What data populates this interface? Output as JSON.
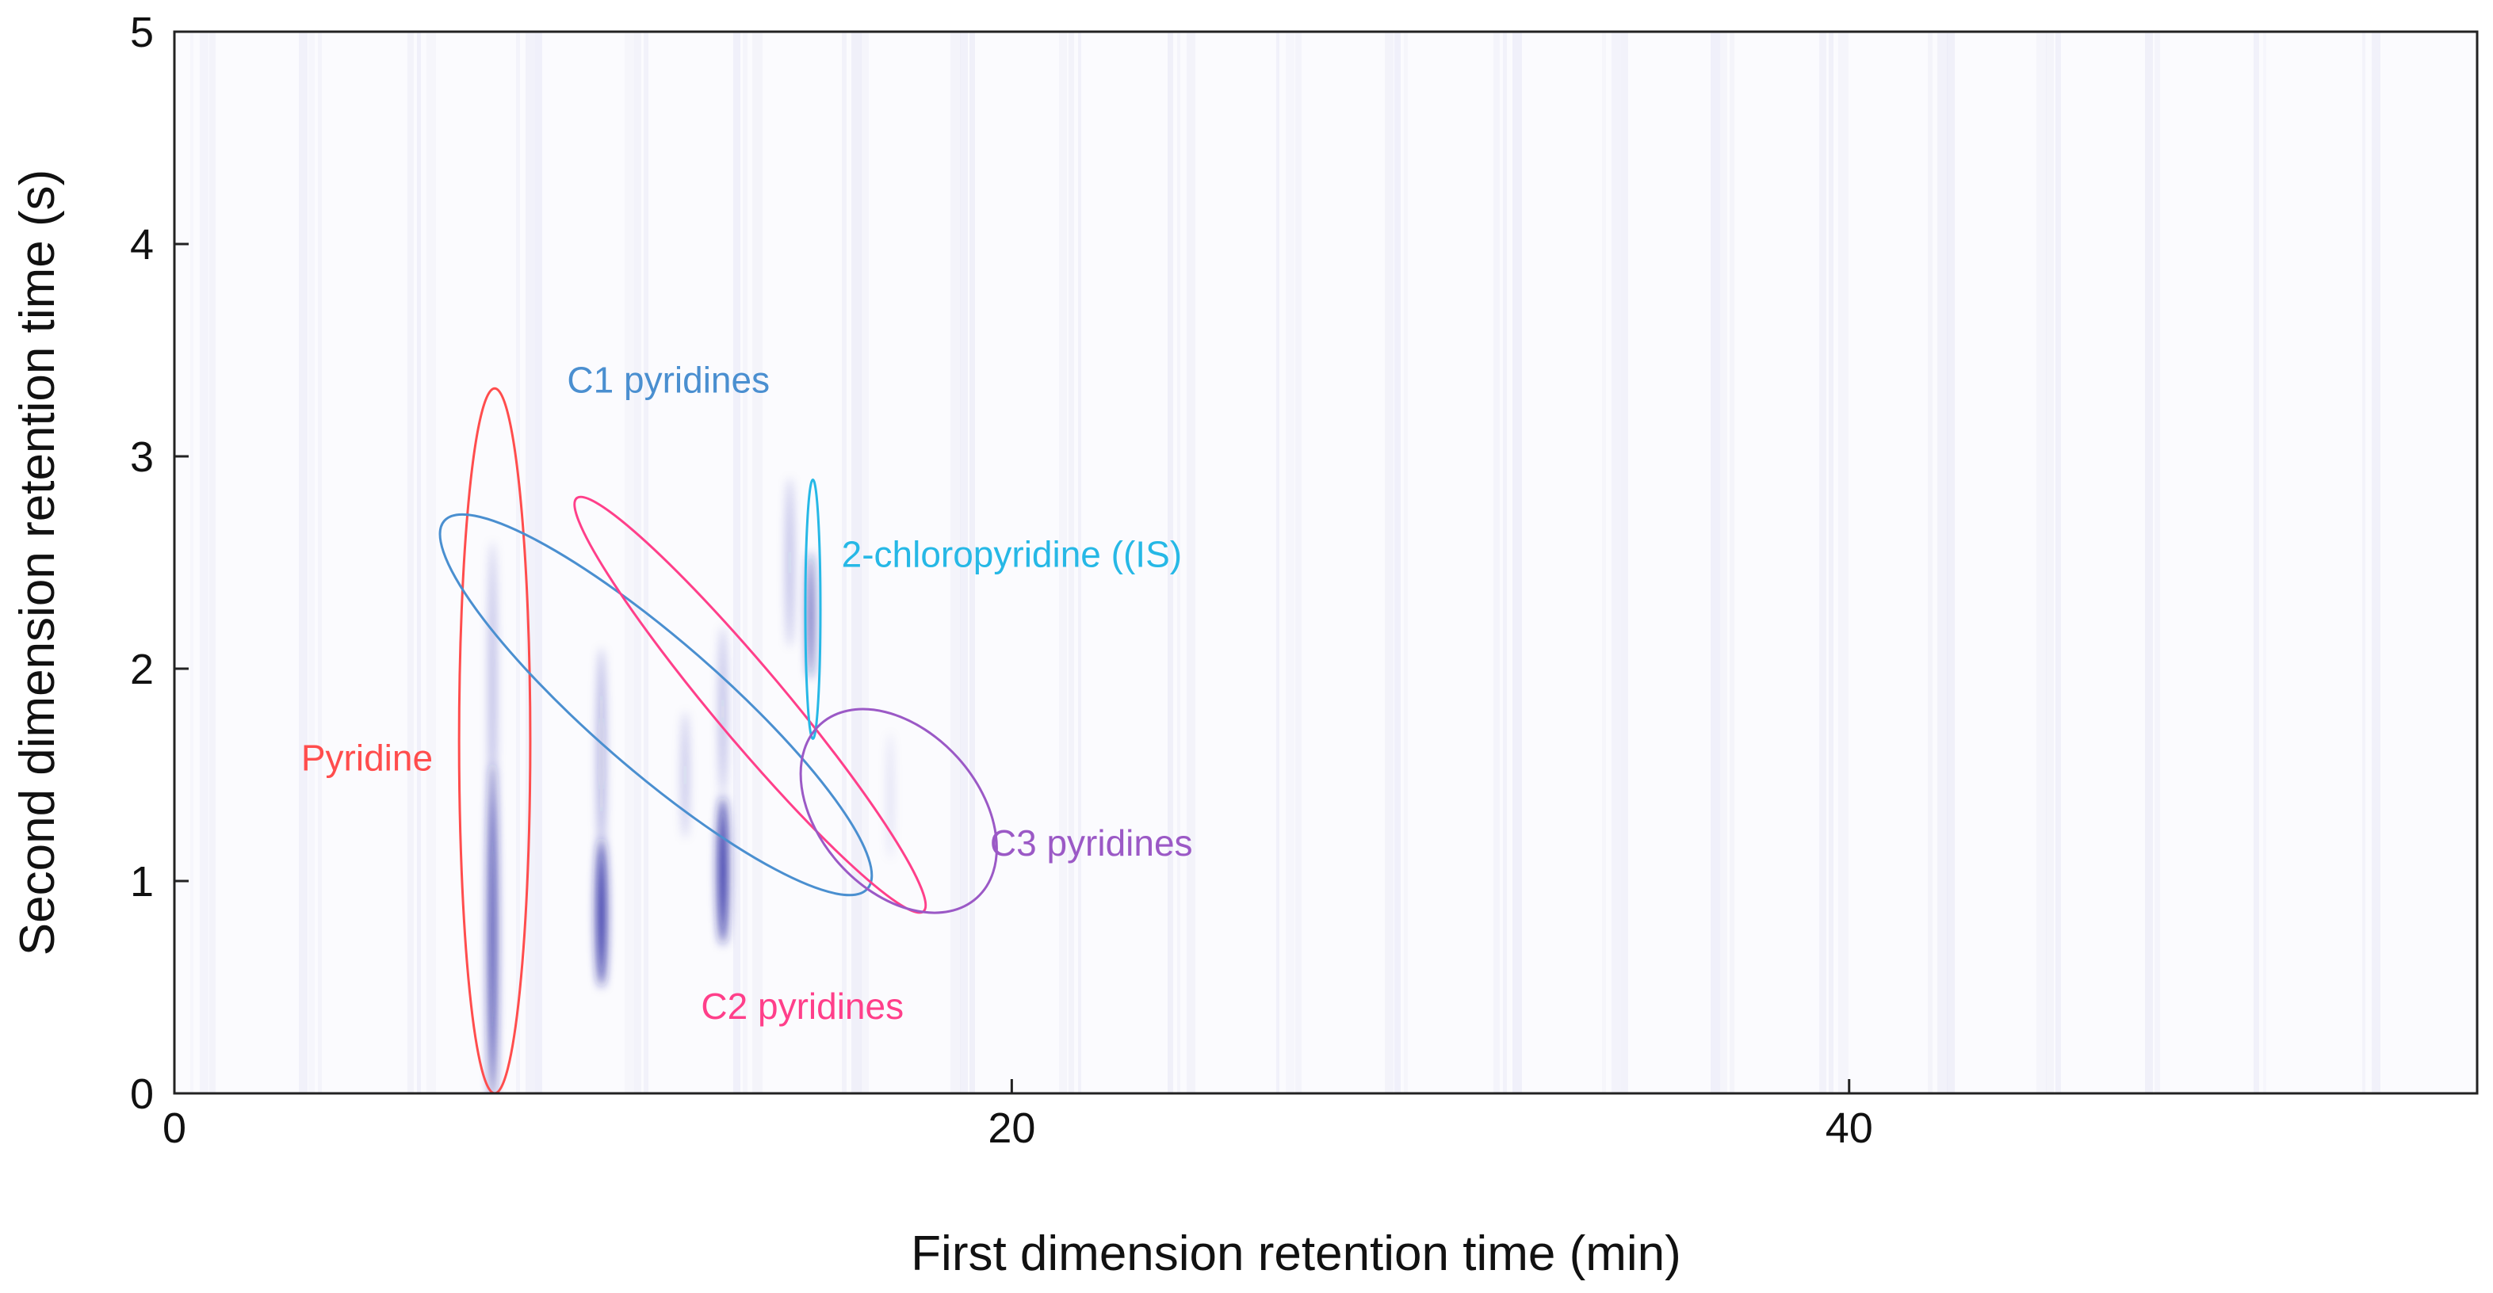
{
  "chart_data": {
    "type": "heatmap",
    "title": "",
    "xlabel": "First dimension retention time (min)",
    "ylabel": "Second dimension retention time (s)",
    "xlim": [
      0,
      55
    ],
    "ylim": [
      0,
      5
    ],
    "grid": false,
    "x_ticks": [
      {
        "value": 0,
        "label": "0"
      },
      {
        "value": 20,
        "label": "20"
      },
      {
        "value": 40,
        "label": "40"
      }
    ],
    "y_ticks": [
      {
        "value": 0,
        "label": "0"
      },
      {
        "value": 1,
        "label": "1"
      },
      {
        "value": 2,
        "label": "2"
      },
      {
        "value": 3,
        "label": "3"
      },
      {
        "value": 4,
        "label": "4"
      },
      {
        "value": 5,
        "label": "5"
      }
    ],
    "colors": {
      "peak": "#1a1f9e",
      "pyridine": "#ff4d4d",
      "c1": "#4a8fd0",
      "c2": "#ff3f8a",
      "is": "#26b8e6",
      "c3": "#9b59c6",
      "axis": "#222222"
    },
    "peaks": [
      {
        "x": 7.6,
        "y": 0.75,
        "sx": 0.09,
        "sy": 0.8,
        "intensity": 0.95
      },
      {
        "x": 7.6,
        "y": 1.9,
        "sx": 0.07,
        "sy": 0.7,
        "intensity": 0.35
      },
      {
        "x": 10.2,
        "y": 0.85,
        "sx": 0.12,
        "sy": 0.35,
        "intensity": 0.95
      },
      {
        "x": 10.2,
        "y": 1.6,
        "sx": 0.09,
        "sy": 0.5,
        "intensity": 0.35
      },
      {
        "x": 12.2,
        "y": 1.5,
        "sx": 0.08,
        "sy": 0.3,
        "intensity": 0.25
      },
      {
        "x": 13.1,
        "y": 1.05,
        "sx": 0.12,
        "sy": 0.35,
        "intensity": 0.95
      },
      {
        "x": 13.1,
        "y": 1.8,
        "sx": 0.08,
        "sy": 0.4,
        "intensity": 0.3
      },
      {
        "x": 14.7,
        "y": 2.5,
        "sx": 0.08,
        "sy": 0.4,
        "intensity": 0.3
      },
      {
        "x": 15.2,
        "y": 2.25,
        "sx": 0.07,
        "sy": 0.3,
        "intensity": 0.85
      },
      {
        "x": 17.1,
        "y": 1.4,
        "sx": 0.06,
        "sy": 0.3,
        "intensity": 0.15
      }
    ],
    "groups": [
      {
        "label": "Pyridine",
        "color_key": "pyridine",
        "cx": 7.65,
        "cy": 1.66,
        "rx": 0.85,
        "ry": 1.66,
        "angle": 0,
        "label_x": 4.6,
        "label_y": 1.52
      },
      {
        "label": "C1 pyridines",
        "color_key": "c1",
        "cx": 11.5,
        "cy": 1.83,
        "rx": 1.55,
        "ry": 1.32,
        "angle": -49,
        "label_x": 11.8,
        "label_y": 3.3
      },
      {
        "label": "C2 pyridines",
        "color_key": "c2",
        "cx": 13.75,
        "cy": 1.83,
        "rx": 0.85,
        "ry": 1.27,
        "angle": -40,
        "label_x": 15.0,
        "label_y": 0.35
      },
      {
        "label": "2-chloropyridine ((IS)",
        "color_key": "is",
        "cx": 15.25,
        "cy": 2.28,
        "rx": 0.18,
        "ry": 0.61,
        "angle": 0,
        "label_x": 20.0,
        "label_y": 2.48
      },
      {
        "label": "C3 pyridines",
        "color_key": "c3",
        "cx": 17.3,
        "cy": 1.33,
        "rx": 1.9,
        "ry": 0.55,
        "angle": -42,
        "label_x": 21.9,
        "label_y": 1.12
      }
    ]
  }
}
